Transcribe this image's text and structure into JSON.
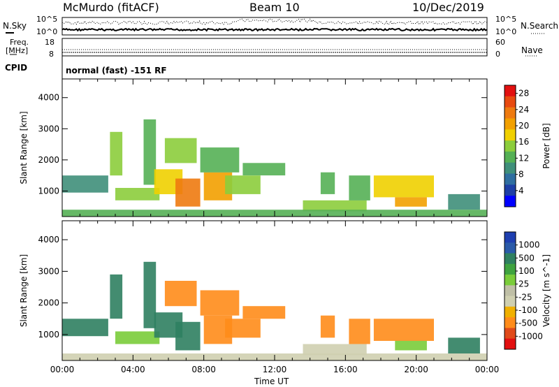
{
  "header": {
    "station": "McMurdo (fitACF)",
    "beam": "Beam 10",
    "date": "10/Dec/2019"
  },
  "top_panels": {
    "nsky_label": "N.Sky",
    "nsearch_label": "N.Search",
    "noise_tick_high": "10^5",
    "noise_tick_low": "10^0",
    "freq_label_line1": "Freq.",
    "freq_label_line2": "[MHz]",
    "freq_ticks": [
      "18",
      "8"
    ],
    "nave_ticks": [
      "60",
      "0"
    ],
    "nave_label": "Nave",
    "cpid_label": "CPID",
    "cpid_text": "normal (fast) -151 RF"
  },
  "colors": {
    "power_scale": [
      "#0000ff",
      "#1e3fa6",
      "#2f6ea0",
      "#3f8f7a",
      "#55b055",
      "#8ccd3c",
      "#f0d000",
      "#f2a000",
      "#ee7a10",
      "#e84a10",
      "#e21010"
    ],
    "velocity_scale": [
      "#1e3fb0",
      "#2a5aa8",
      "#2f8060",
      "#3fa33f",
      "#7acc3a",
      "#bfbfa6",
      "#cfcfb0",
      "#f0b000",
      "#ff8c1a",
      "#e04a1a",
      "#e21010"
    ]
  },
  "chart_data": [
    {
      "type": "heatmap",
      "name": "power",
      "ylabel": "Slant Range [km]",
      "xlabel": "Time UT",
      "x_tick_labels": [
        "00:00",
        "04:00",
        "08:00",
        "12:00",
        "16:00",
        "20:00",
        "00:00"
      ],
      "y_tick_labels": [
        "1000",
        "2000",
        "3000",
        "4000"
      ],
      "ylim": [
        180,
        4600
      ],
      "xlim_hours": [
        0,
        24
      ],
      "colorbar": {
        "label": "Power [dB]",
        "ticks": [
          "4",
          "8",
          "12",
          "16",
          "20",
          "24",
          "28"
        ],
        "range": [
          0,
          30
        ]
      },
      "regions": [
        {
          "x": [
            0.0,
            2.6
          ],
          "y": [
            950,
            1500
          ],
          "value": 10
        },
        {
          "x": [
            2.7,
            3.4
          ],
          "y": [
            1500,
            2900
          ],
          "value": 14
        },
        {
          "x": [
            3.0,
            5.5
          ],
          "y": [
            700,
            1100
          ],
          "value": 16
        },
        {
          "x": [
            4.6,
            5.3
          ],
          "y": [
            1200,
            3300
          ],
          "value": 12
        },
        {
          "x": [
            5.2,
            6.8
          ],
          "y": [
            900,
            1700
          ],
          "value": 18
        },
        {
          "x": [
            5.8,
            7.6
          ],
          "y": [
            1900,
            2700
          ],
          "value": 15
        },
        {
          "x": [
            6.4,
            7.8
          ],
          "y": [
            500,
            1400
          ],
          "value": 22
        },
        {
          "x": [
            8.0,
            9.6
          ],
          "y": [
            700,
            1600
          ],
          "value": 20
        },
        {
          "x": [
            7.8,
            10.0
          ],
          "y": [
            1600,
            2400
          ],
          "value": 13
        },
        {
          "x": [
            9.2,
            11.2
          ],
          "y": [
            900,
            1500
          ],
          "value": 15
        },
        {
          "x": [
            10.2,
            12.6
          ],
          "y": [
            1500,
            1900
          ],
          "value": 12
        },
        {
          "x": [
            13.6,
            17.2
          ],
          "y": [
            350,
            700
          ],
          "value": 14
        },
        {
          "x": [
            14.6,
            15.4
          ],
          "y": [
            900,
            1600
          ],
          "value": 11
        },
        {
          "x": [
            16.2,
            17.4
          ],
          "y": [
            700,
            1500
          ],
          "value": 12
        },
        {
          "x": [
            17.6,
            21.0
          ],
          "y": [
            800,
            1500
          ],
          "value": 17
        },
        {
          "x": [
            18.8,
            20.6
          ],
          "y": [
            500,
            800
          ],
          "value": 20
        },
        {
          "x": [
            21.8,
            23.6
          ],
          "y": [
            400,
            900
          ],
          "value": 9
        },
        {
          "x": [
            0.0,
            24.0
          ],
          "y": [
            180,
            400
          ],
          "value": 11
        }
      ]
    },
    {
      "type": "heatmap",
      "name": "velocity",
      "ylabel": "Slant Range [km]",
      "xlabel": "Time UT",
      "x_tick_labels": [
        "00:00",
        "04:00",
        "08:00",
        "12:00",
        "16:00",
        "20:00",
        "00:00"
      ],
      "y_tick_labels": [
        "1000",
        "2000",
        "3000",
        "4000"
      ],
      "ylim": [
        180,
        4600
      ],
      "xlim_hours": [
        0,
        24
      ],
      "colorbar": {
        "label": "Velocity [m s^-1]",
        "ticks": [
          "1000",
          "500",
          "100",
          "25",
          "-25",
          "-100",
          "-500",
          "-1000"
        ]
      },
      "regions": [
        {
          "x": [
            0.0,
            2.6
          ],
          "y": [
            950,
            1500
          ],
          "value": 150
        },
        {
          "x": [
            2.7,
            3.4
          ],
          "y": [
            1500,
            2900
          ],
          "value": 300
        },
        {
          "x": [
            3.0,
            5.5
          ],
          "y": [
            700,
            1100
          ],
          "value": 80
        },
        {
          "x": [
            4.6,
            5.3
          ],
          "y": [
            1200,
            3300
          ],
          "value": 400
        },
        {
          "x": [
            5.2,
            6.8
          ],
          "y": [
            900,
            1700
          ],
          "value": 200
        },
        {
          "x": [
            5.8,
            7.6
          ],
          "y": [
            1900,
            2700
          ],
          "value": -150
        },
        {
          "x": [
            6.4,
            7.8
          ],
          "y": [
            500,
            1400
          ],
          "value": 300
        },
        {
          "x": [
            8.0,
            9.6
          ],
          "y": [
            700,
            1600
          ],
          "value": -200
        },
        {
          "x": [
            7.8,
            10.0
          ],
          "y": [
            1600,
            2400
          ],
          "value": -200
        },
        {
          "x": [
            9.2,
            11.2
          ],
          "y": [
            900,
            1500
          ],
          "value": -250
        },
        {
          "x": [
            10.2,
            12.6
          ],
          "y": [
            1500,
            1900
          ],
          "value": -300
        },
        {
          "x": [
            13.6,
            17.2
          ],
          "y": [
            350,
            700
          ],
          "value": -80
        },
        {
          "x": [
            14.6,
            15.4
          ],
          "y": [
            900,
            1600
          ],
          "value": -200
        },
        {
          "x": [
            16.2,
            17.4
          ],
          "y": [
            700,
            1500
          ],
          "value": -200
        },
        {
          "x": [
            17.6,
            21.0
          ],
          "y": [
            800,
            1500
          ],
          "value": -250
        },
        {
          "x": [
            18.8,
            20.6
          ],
          "y": [
            500,
            800
          ],
          "value": 60
        },
        {
          "x": [
            21.8,
            23.6
          ],
          "y": [
            400,
            900
          ],
          "value": 150
        },
        {
          "x": [
            0.0,
            24.0
          ],
          "y": [
            180,
            400
          ],
          "value": -60
        }
      ]
    }
  ]
}
